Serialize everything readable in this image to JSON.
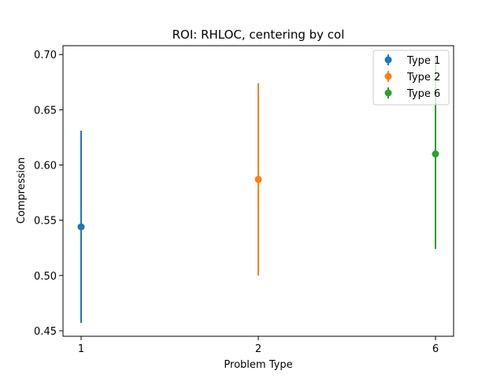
{
  "chart_data": {
    "type": "scatter",
    "title": "ROI: RHLOC, centering by col",
    "xlabel": "Problem Type",
    "ylabel": "Compression",
    "categories": [
      "1",
      "2",
      "6"
    ],
    "ylim": [
      0.445,
      0.708
    ],
    "yticks": [
      "0.45",
      "0.50",
      "0.55",
      "0.60",
      "0.65",
      "0.70"
    ],
    "grid": false,
    "legend_position": "top-right",
    "series": [
      {
        "name": "Type 1",
        "category": "1",
        "value": 0.544,
        "err_low": 0.457,
        "err_high": 0.631,
        "color": "#1f77b4"
      },
      {
        "name": "Type 2",
        "category": "2",
        "value": 0.587,
        "err_low": 0.5,
        "err_high": 0.674,
        "color": "#ff7f0e"
      },
      {
        "name": "Type 6",
        "category": "6",
        "value": 0.61,
        "err_low": 0.524,
        "err_high": 0.697,
        "color": "#2ca02c"
      }
    ]
  }
}
